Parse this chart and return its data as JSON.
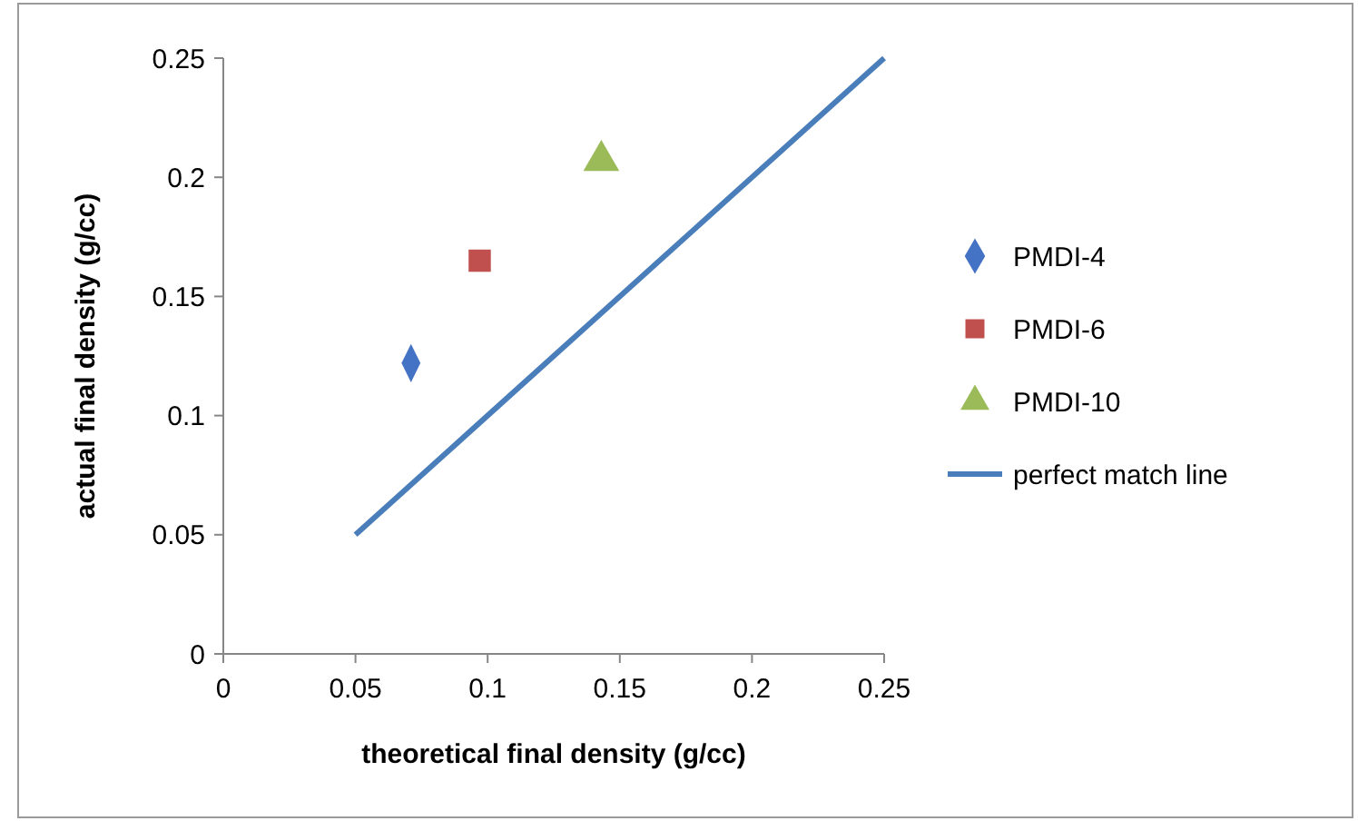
{
  "chart_data": {
    "type": "scatter",
    "xlabel": "theoretical final density (g/cc)",
    "ylabel": "actual final density (g/cc)",
    "xlim": [
      0,
      0.25
    ],
    "xticks": [
      0,
      0.05,
      0.1,
      0.15,
      0.2,
      0.25
    ],
    "ylim": [
      0,
      0.25
    ],
    "yticks": [
      0,
      0.05,
      0.1,
      0.15,
      0.2,
      0.25
    ],
    "grid": false,
    "legend": "right",
    "series": [
      {
        "name": "PMDI-4",
        "color": "#4472c4",
        "marker": "diamond",
        "x": [
          0.071
        ],
        "values": [
          0.122
        ]
      },
      {
        "name": "PMDI-6",
        "color": "#c0504d",
        "marker": "square",
        "x": [
          0.097
        ],
        "values": [
          0.165
        ]
      },
      {
        "name": "PMDI-10",
        "color": "#9bbb59",
        "marker": "triangle",
        "x": [
          0.143
        ],
        "values": [
          0.207
        ]
      },
      {
        "name": "perfect match line",
        "type": "line",
        "color": "#4a7ebb",
        "marker": "none",
        "line_style": "solid",
        "x": [
          0.05,
          0.25
        ],
        "values": [
          0.05,
          0.25
        ]
      }
    ]
  }
}
